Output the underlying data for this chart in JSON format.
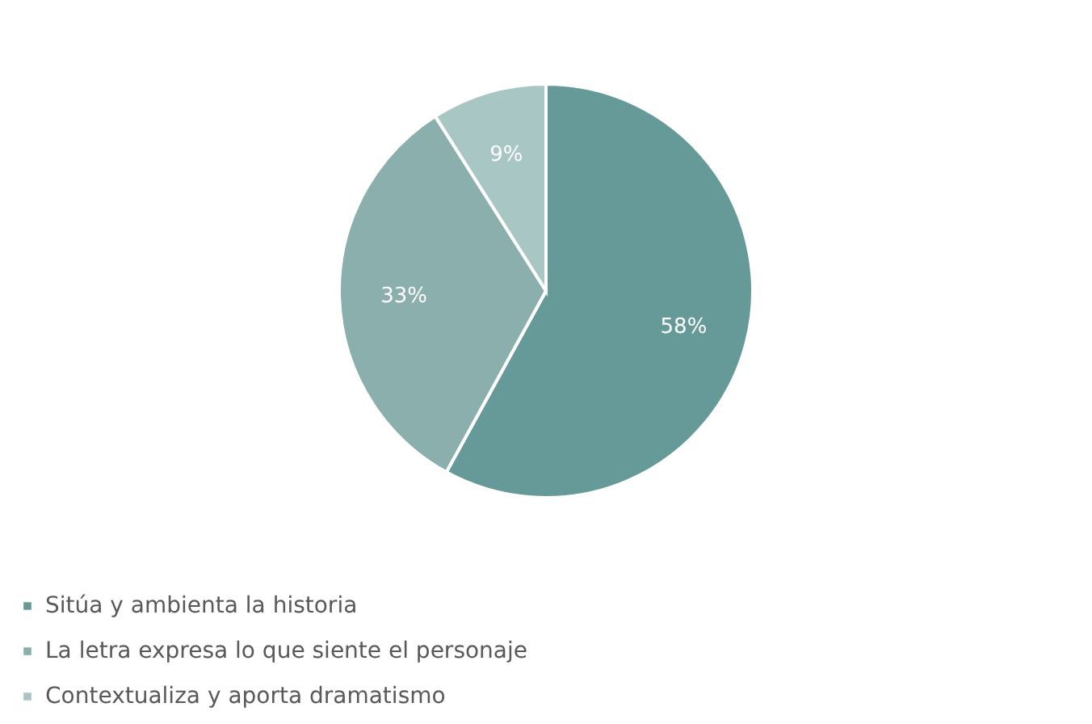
{
  "chart_data": {
    "type": "pie",
    "categories": [
      "Sitúa y ambienta la historia",
      "La letra expresa lo que siente el personaje",
      "Contextualiza y aporta dramatismo"
    ],
    "values": [
      58,
      33,
      9
    ],
    "colors": [
      "#669a98",
      "#8aafac",
      "#a8c6c4"
    ],
    "value_labels": [
      "58%",
      "33%",
      "9%"
    ],
    "legend": "bottom"
  }
}
